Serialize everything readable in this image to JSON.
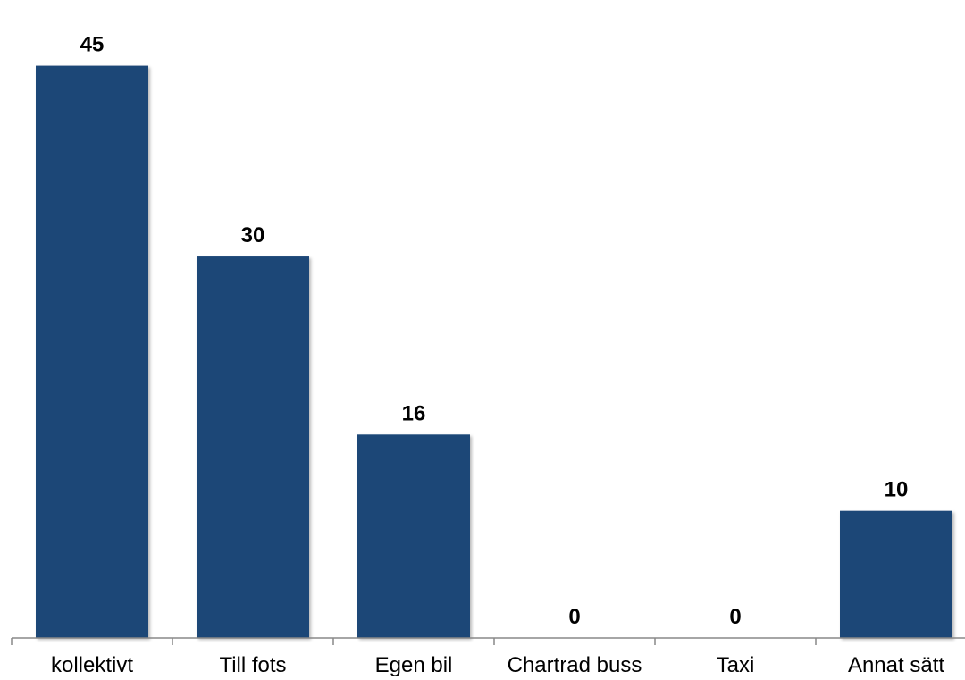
{
  "chart_data": {
    "type": "bar",
    "categories": [
      "kollektivt",
      "Till fots",
      "Egen bil",
      "Chartrad buss",
      "Taxi",
      "Annat sätt"
    ],
    "values": [
      45,
      30,
      16,
      0,
      0,
      10
    ],
    "data_labels": [
      "45",
      "30",
      "16",
      "0",
      "0",
      "10"
    ],
    "title": "",
    "xlabel": "",
    "ylabel": "",
    "ylim": [
      0,
      47.5
    ],
    "grid": false,
    "legend": "none",
    "colors": {
      "bar": "#1F4777",
      "axis": "#888888"
    }
  }
}
